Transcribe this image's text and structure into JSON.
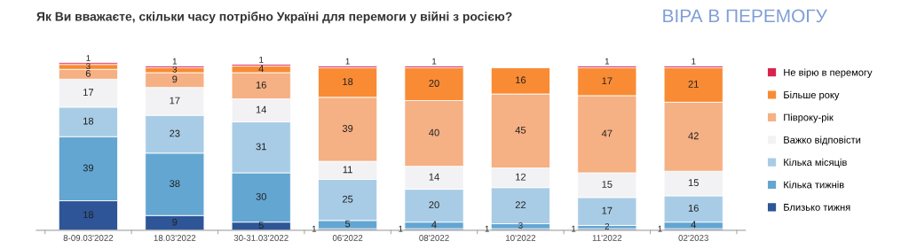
{
  "chart_data": {
    "type": "bar",
    "title": "Як Ви вважаєте, скільки часу потрібно Україні для перемоги у війні з росією?",
    "subtitle": "ВІРА В ПЕРЕМОГУ",
    "categories": [
      "8-09.03'2022",
      "18.03'2022",
      "30-31.03'2022",
      "06'2022",
      "08'2022",
      "10'2022",
      "11'2022",
      "02'2023"
    ],
    "stacked": true,
    "data_labels": true,
    "legend": "right",
    "grid": false,
    "series": [
      {
        "name": "Близько тижня",
        "color": "#2e5597",
        "values": [
          18,
          9,
          5,
          1,
          1,
          1,
          1,
          1
        ]
      },
      {
        "name": "Кілька тижнів",
        "color": "#63a6d2",
        "values": [
          39,
          38,
          30,
          5,
          4,
          3,
          2,
          4
        ]
      },
      {
        "name": "Кілька місяців",
        "color": "#a9cce6",
        "values": [
          18,
          23,
          31,
          25,
          20,
          22,
          17,
          16
        ]
      },
      {
        "name": "Важко відповісти",
        "color": "#f2f2f5",
        "values": [
          17,
          17,
          14,
          11,
          14,
          12,
          15,
          15
        ]
      },
      {
        "name": "Півроку-рік",
        "color": "#f5b084",
        "values": [
          6,
          9,
          16,
          39,
          40,
          45,
          47,
          42
        ]
      },
      {
        "name": "Більше року",
        "color": "#f98b34",
        "values": [
          3,
          3,
          4,
          18,
          20,
          16,
          17,
          21
        ]
      },
      {
        "name": "Не вірю в перемогу",
        "color": "#d8234f",
        "values": [
          1,
          1,
          1,
          1,
          1,
          null,
          1,
          1
        ]
      }
    ]
  }
}
